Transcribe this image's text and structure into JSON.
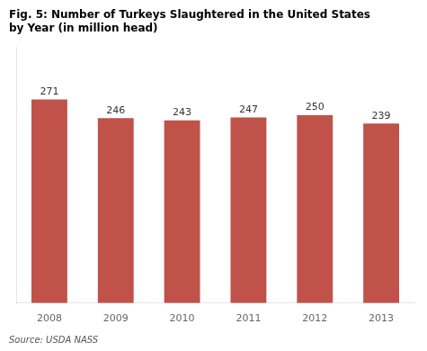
{
  "chart_data": {
    "type": "bar",
    "title": [
      "Fig. 5: Number of Turkeys Slaughtered in the United States",
      "by Year (in million head)"
    ],
    "annotations": [
      "Source: USDA NASS"
    ],
    "categories": [
      "2008",
      "2009",
      "2010",
      "2011",
      "2012",
      "2013"
    ],
    "values": [
      271,
      246,
      243,
      247,
      250,
      239
    ],
    "color": "#c0524a",
    "ylim": [
      0,
      340
    ],
    "grid": false,
    "data_labels": true,
    "tick_labels": "x"
  }
}
